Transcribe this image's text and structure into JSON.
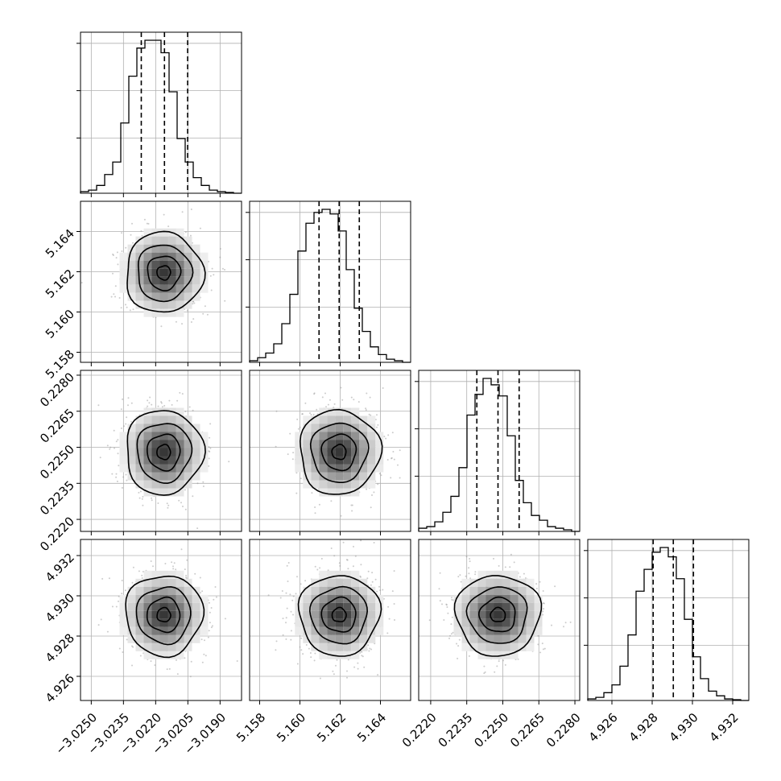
{
  "chart_data": {
    "type": "corner",
    "grid": true,
    "parameters": [
      {
        "range": [
          -3.0255,
          -3.018
        ],
        "ticks": [
          -3.025,
          -3.0235,
          -3.022,
          -3.0205,
          -3.019
        ],
        "tick_labels": [
          "−3.0250",
          "−3.0235",
          "−3.0220",
          "−3.0205",
          "−3.0190"
        ],
        "quantiles": [
          -3.02267,
          -3.02159,
          -3.02051
        ],
        "mean": -3.02162,
        "sigma": 0.0009,
        "histogram": [
          1,
          2,
          5,
          12,
          20,
          45,
          75,
          93,
          98,
          98,
          90,
          65,
          35,
          20,
          10,
          5,
          2,
          1,
          0.5,
          0
        ]
      },
      {
        "range": [
          5.1575,
          5.1655
        ],
        "ticks": [
          5.158,
          5.16,
          5.162,
          5.164
        ],
        "tick_labels": [
          "5.158",
          "5.160",
          "5.162",
          "5.164"
        ],
        "quantiles": [
          5.16095,
          5.16195,
          5.16295
        ],
        "mean": 5.16195,
        "sigma": 0.001,
        "histogram": [
          1,
          3,
          6,
          12,
          25,
          44,
          72,
          90,
          97,
          99,
          96,
          85,
          60,
          35,
          20,
          10,
          5,
          2,
          1,
          0
        ]
      },
      {
        "range": [
          0.2215,
          0.2282
        ],
        "ticks": [
          0.222,
          0.2235,
          0.225,
          0.2265,
          0.228
        ],
        "tick_labels": [
          "0.2220",
          "0.2235",
          "0.2250",
          "0.2265",
          "0.2280"
        ],
        "quantiles": [
          0.22392,
          0.2248,
          0.22568
        ],
        "mean": 0.2248,
        "sigma": 0.00088,
        "histogram": [
          2,
          3,
          6,
          12,
          22,
          40,
          73,
          86,
          96,
          92,
          85,
          60,
          32,
          18,
          10,
          7,
          3,
          2,
          1,
          0
        ]
      },
      {
        "range": [
          4.9248,
          4.9328
        ],
        "ticks": [
          4.926,
          4.928,
          4.93,
          4.932
        ],
        "tick_labels": [
          "4.926",
          "4.928",
          "4.930",
          "4.932"
        ],
        "quantiles": [
          4.92805,
          4.92905,
          4.93005
        ],
        "mean": 4.92905,
        "sigma": 0.001,
        "histogram": [
          1,
          2,
          5,
          10,
          22,
          42,
          70,
          84,
          95,
          98,
          92,
          78,
          52,
          28,
          14,
          6,
          3,
          1,
          0.5,
          0
        ]
      }
    ]
  }
}
